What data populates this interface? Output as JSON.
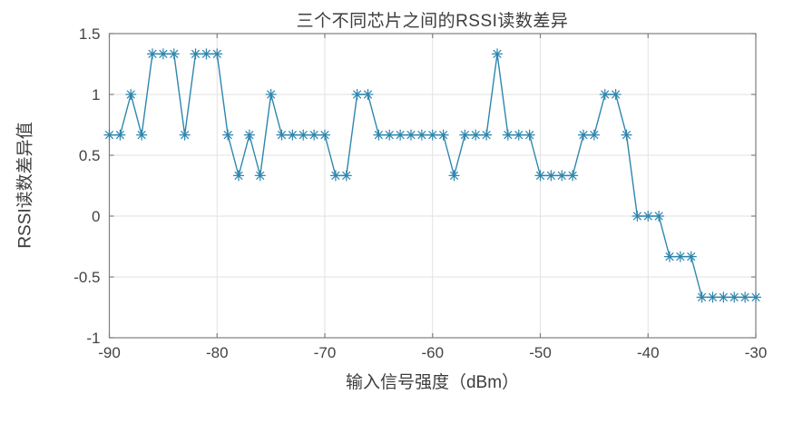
{
  "figure": {
    "title": "三个不同芯片之间的RSSI读数差异",
    "xlabel": "输入信号强度（dBm）",
    "ylabel": "RSSI读数差异值"
  },
  "chart_data": {
    "type": "line",
    "title": "三个不同芯片之间的RSSI读数差异",
    "xlabel": "输入信号强度（dBm）",
    "ylabel": "RSSI读数差异值",
    "legend_position": "none",
    "grid": true,
    "marker": "asterisk",
    "line_color": "#2E86AE",
    "grid_color": "#E2E2E2",
    "axis_color": "#7F7F7F",
    "text_color": "#434343",
    "xlim": [
      -90,
      -30
    ],
    "ylim": [
      -1,
      1.5
    ],
    "xticks": [
      -90,
      -80,
      -70,
      -60,
      -50,
      -40,
      -30
    ],
    "yticks": [
      -1,
      -0.5,
      0,
      0.5,
      1,
      1.5
    ],
    "x": [
      -90,
      -89,
      -88,
      -87,
      -86,
      -85,
      -84,
      -83,
      -82,
      -81,
      -80,
      -79,
      -78,
      -77,
      -76,
      -75,
      -74,
      -73,
      -72,
      -71,
      -70,
      -69,
      -68,
      -67,
      -66,
      -65,
      -64,
      -63,
      -62,
      -61,
      -60,
      -59,
      -58,
      -57,
      -56,
      -55,
      -54,
      -53,
      -52,
      -51,
      -50,
      -49,
      -48,
      -47,
      -46,
      -45,
      -44,
      -43,
      -42,
      -41,
      -40,
      -39,
      -38,
      -37,
      -36,
      -35,
      -34,
      -33,
      -32,
      -31,
      -30
    ],
    "y": [
      0.667,
      0.667,
      1,
      0.667,
      1.333,
      1.333,
      1.333,
      0.667,
      1.333,
      1.333,
      1.333,
      0.667,
      0.333,
      0.667,
      0.333,
      1,
      0.667,
      0.667,
      0.667,
      0.667,
      0.667,
      0.333,
      0.333,
      1,
      1,
      0.667,
      0.667,
      0.667,
      0.667,
      0.667,
      0.667,
      0.667,
      0.333,
      0.667,
      0.667,
      0.667,
      1.333,
      0.667,
      0.667,
      0.667,
      0.333,
      0.333,
      0.333,
      0.333,
      0.667,
      0.667,
      1,
      1,
      0.667,
      0,
      0,
      0,
      -0.333,
      -0.333,
      -0.333,
      -0.667,
      -0.667,
      -0.667,
      -0.667,
      -0.667,
      -0.667
    ]
  }
}
